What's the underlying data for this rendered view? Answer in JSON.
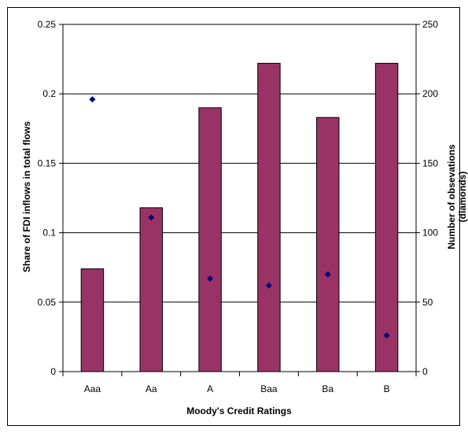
{
  "chart_data": {
    "type": "bar",
    "categories": [
      "Aaa",
      "Aa",
      "A",
      "Baa",
      "Ba",
      "B"
    ],
    "series": [
      {
        "type": "bar",
        "axis": "left",
        "color": "#993366",
        "values": [
          0.074,
          0.118,
          0.19,
          0.222,
          0.183,
          0.222
        ]
      },
      {
        "type": "scatter",
        "axis": "right",
        "marker": "diamond",
        "color": "#000080",
        "values": [
          196,
          111,
          67,
          62,
          70,
          26
        ]
      }
    ],
    "xlabel": "Moody's Credit Ratings",
    "ylabel": "Share of FDI inflows in total flows",
    "y2label_line1": "Number of obsevations",
    "y2label_line2": "(diamonds)",
    "ylim": [
      0,
      0.25
    ],
    "y2lim": [
      0,
      250
    ],
    "yticks": [
      "0",
      "0.05",
      "0.1",
      "0.15",
      "0.2",
      "0.25"
    ],
    "y2ticks": [
      "0",
      "50",
      "100",
      "150",
      "200",
      "250"
    ],
    "grid": true,
    "legend": "none"
  }
}
